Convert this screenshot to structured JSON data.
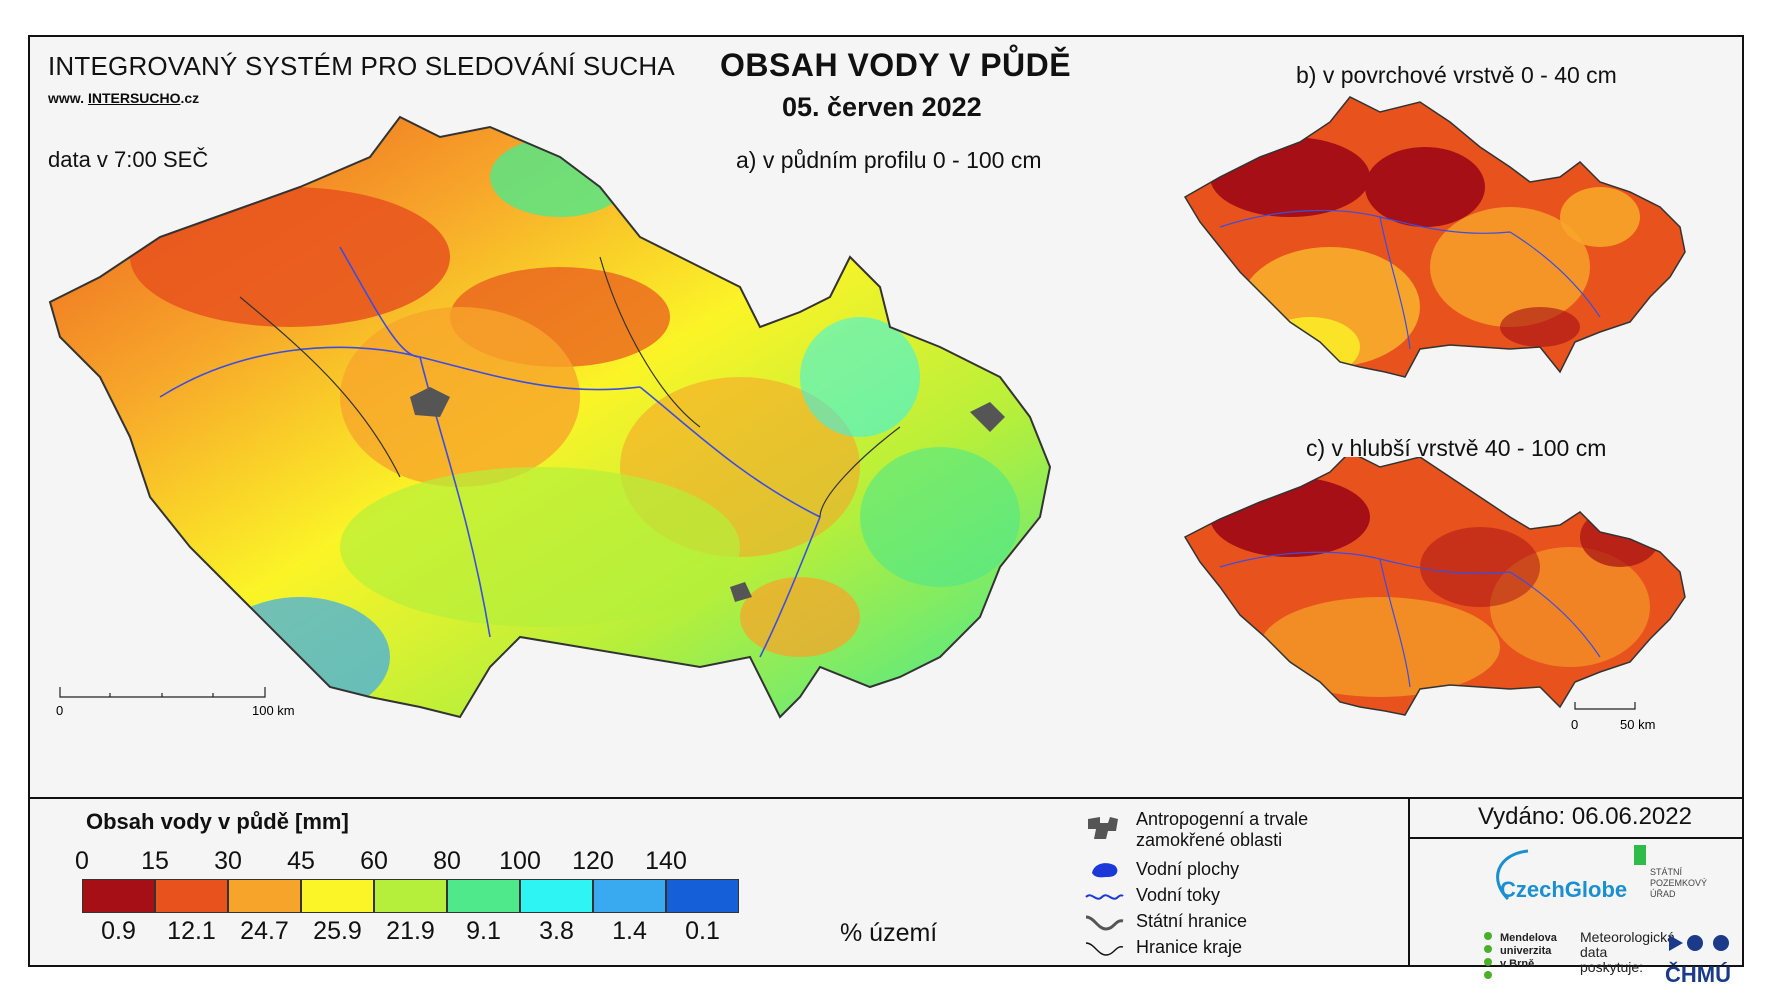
{
  "header": {
    "system_title": "INTEGROVANÝ SYSTÉM PRO SLEDOVÁNÍ SUCHA",
    "url_prefix": "www.",
    "url_brand": "INTERSUCHO",
    "url_suffix": ".cz",
    "data_time": "data v 7:00 SEČ",
    "main_title": "OBSAH VODY V PŮDĚ",
    "main_date": "05. červen 2022"
  },
  "maps": {
    "a_label": "a) v půdním profilu 0 - 100 cm",
    "b_label": "b) v povrchové vrstvě 0 - 40 cm",
    "c_label": "c) v hlubší vrstvě 40 - 100 cm",
    "scale_a": {
      "zero": "0",
      "end": "100 km"
    },
    "scale_c": {
      "zero": "0",
      "end": "50 km"
    }
  },
  "legend": {
    "title": "Obsah vody v půdě  [mm]",
    "ticks": [
      "0",
      "15",
      "30",
      "45",
      "60",
      "80",
      "100",
      "120",
      "140"
    ],
    "classes": [
      {
        "color": "#a50f15",
        "pct": "0.9"
      },
      {
        "color": "#e8521d",
        "pct": "12.1"
      },
      {
        "color": "#f7a52a",
        "pct": "24.7"
      },
      {
        "color": "#fbf427",
        "pct": "25.9"
      },
      {
        "color": "#b5ef3b",
        "pct": "21.9"
      },
      {
        "color": "#4fe88a",
        "pct": "9.1"
      },
      {
        "color": "#2ff4f4",
        "pct": "3.8"
      },
      {
        "color": "#3aaaf0",
        "pct": "1.4"
      },
      {
        "color": "#1560d8",
        "pct": "0.1"
      }
    ],
    "pct_unit": "% území"
  },
  "map_legend": {
    "items": [
      {
        "icon": "anthropogenic-area-icon",
        "label": "Antropogenní a trvale\nzamokřené oblasti"
      },
      {
        "icon": "water-body-icon",
        "label": "Vodní plochy"
      },
      {
        "icon": "river-icon",
        "label": "Vodní toky"
      },
      {
        "icon": "state-border-icon",
        "label": "Státní hranice"
      },
      {
        "icon": "region-border-icon",
        "label": "Hranice kraje"
      }
    ]
  },
  "footer": {
    "issued": "Vydáno: 06.06.2022",
    "czechglobe": "CzechGlobe",
    "spu": "STÁTNÍ\nPOZEMKOVÝ\nÚŘAD",
    "mendel": "Mendelova\nuniverzita\nv Brně",
    "met_data": "Meteorologická\ndata\nposkytuje:",
    "chmu": "ČHMÚ"
  }
}
